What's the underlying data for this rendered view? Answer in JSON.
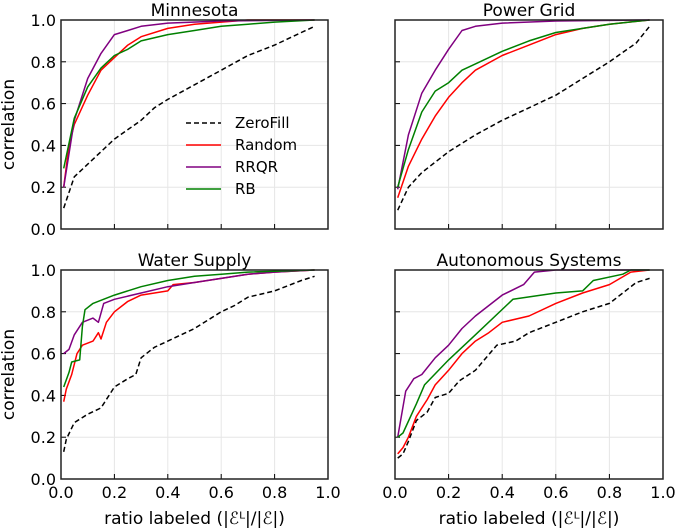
{
  "chart_data": [
    {
      "type": "line",
      "title": "Minnesota",
      "xlabel": "",
      "ylabel": "correlation",
      "xlim": [
        0,
        1
      ],
      "ylim": [
        0,
        1
      ],
      "xticks": [
        "0.0",
        "0.2",
        "0.4",
        "0.6",
        "0.8",
        "1.0"
      ],
      "yticks": [
        "0.0",
        "0.2",
        "0.4",
        "0.6",
        "0.8",
        "1.0"
      ],
      "show_xticklabels": false,
      "show_yticklabels": true,
      "grid": true,
      "legend": "center-right",
      "series": [
        {
          "name": "ZeroFill",
          "color": "#000000",
          "dash": true,
          "x": [
            0.01,
            0.05,
            0.1,
            0.2,
            0.3,
            0.35,
            0.4,
            0.5,
            0.6,
            0.7,
            0.8,
            0.9,
            0.95
          ],
          "y": [
            0.1,
            0.25,
            0.31,
            0.43,
            0.52,
            0.58,
            0.62,
            0.69,
            0.76,
            0.83,
            0.88,
            0.94,
            0.97
          ]
        },
        {
          "name": "Random",
          "color": "#ff0000",
          "dash": false,
          "x": [
            0.01,
            0.03,
            0.05,
            0.1,
            0.15,
            0.2,
            0.25,
            0.3,
            0.4,
            0.5,
            0.6,
            0.7,
            0.95
          ],
          "y": [
            0.2,
            0.4,
            0.5,
            0.64,
            0.76,
            0.82,
            0.88,
            0.92,
            0.96,
            0.98,
            0.99,
            1.0,
            1.0
          ]
        },
        {
          "name": "RRQR",
          "color": "#800080",
          "dash": false,
          "x": [
            0.01,
            0.05,
            0.1,
            0.15,
            0.2,
            0.25,
            0.3,
            0.4,
            0.6,
            0.95
          ],
          "y": [
            0.2,
            0.52,
            0.72,
            0.84,
            0.93,
            0.95,
            0.97,
            0.985,
            0.995,
            1.0
          ]
        },
        {
          "name": "RB",
          "color": "#008000",
          "dash": false,
          "x": [
            0.01,
            0.05,
            0.1,
            0.15,
            0.2,
            0.25,
            0.3,
            0.4,
            0.5,
            0.6,
            0.7,
            0.8,
            0.95
          ],
          "y": [
            0.29,
            0.53,
            0.68,
            0.77,
            0.83,
            0.86,
            0.9,
            0.93,
            0.95,
            0.97,
            0.98,
            0.99,
            1.0
          ]
        }
      ]
    },
    {
      "type": "line",
      "title": "Power Grid",
      "xlabel": "",
      "ylabel": "",
      "xlim": [
        0,
        1
      ],
      "ylim": [
        0,
        1
      ],
      "xticks": [
        "0.0",
        "0.2",
        "0.4",
        "0.6",
        "0.8",
        "1.0"
      ],
      "yticks": [
        "0.0",
        "0.2",
        "0.4",
        "0.6",
        "0.8",
        "1.0"
      ],
      "show_xticklabels": false,
      "show_yticklabels": false,
      "grid": true,
      "series": [
        {
          "name": "ZeroFill",
          "color": "#000000",
          "dash": true,
          "x": [
            0.01,
            0.05,
            0.1,
            0.2,
            0.3,
            0.4,
            0.5,
            0.6,
            0.7,
            0.8,
            0.9,
            0.95
          ],
          "y": [
            0.09,
            0.2,
            0.27,
            0.37,
            0.45,
            0.52,
            0.58,
            0.64,
            0.72,
            0.8,
            0.89,
            0.97
          ]
        },
        {
          "name": "Random",
          "color": "#ff0000",
          "dash": false,
          "x": [
            0.01,
            0.05,
            0.1,
            0.15,
            0.2,
            0.25,
            0.3,
            0.4,
            0.5,
            0.6,
            0.7,
            0.8,
            0.95
          ],
          "y": [
            0.15,
            0.3,
            0.43,
            0.54,
            0.63,
            0.7,
            0.76,
            0.83,
            0.88,
            0.93,
            0.96,
            0.98,
            1.0
          ]
        },
        {
          "name": "RRQR",
          "color": "#800080",
          "dash": false,
          "x": [
            0.01,
            0.05,
            0.1,
            0.15,
            0.2,
            0.25,
            0.3,
            0.4,
            0.6,
            0.95
          ],
          "y": [
            0.19,
            0.45,
            0.65,
            0.76,
            0.86,
            0.95,
            0.97,
            0.985,
            0.995,
            1.0
          ]
        },
        {
          "name": "RB",
          "color": "#008000",
          "dash": false,
          "x": [
            0.01,
            0.05,
            0.1,
            0.15,
            0.2,
            0.25,
            0.3,
            0.4,
            0.5,
            0.6,
            0.7,
            0.8,
            0.95
          ],
          "y": [
            0.2,
            0.38,
            0.56,
            0.66,
            0.7,
            0.76,
            0.79,
            0.85,
            0.9,
            0.94,
            0.96,
            0.98,
            1.0
          ]
        }
      ]
    },
    {
      "type": "line",
      "title": "Water Supply",
      "xlabel": "ratio labeled (|ℰᴸ|/|ℰ|)",
      "ylabel": "correlation",
      "xlim": [
        0,
        1
      ],
      "ylim": [
        0,
        1
      ],
      "xticks": [
        "0.0",
        "0.2",
        "0.4",
        "0.6",
        "0.8",
        "1.0"
      ],
      "yticks": [
        "0.0",
        "0.2",
        "0.4",
        "0.6",
        "0.8",
        "1.0"
      ],
      "show_xticklabels": true,
      "show_yticklabels": true,
      "grid": true,
      "series": [
        {
          "name": "ZeroFill",
          "color": "#000000",
          "dash": true,
          "x": [
            0.01,
            0.02,
            0.05,
            0.1,
            0.15,
            0.2,
            0.25,
            0.28,
            0.3,
            0.35,
            0.4,
            0.5,
            0.6,
            0.65,
            0.7,
            0.8,
            0.9,
            0.95
          ],
          "y": [
            0.13,
            0.19,
            0.27,
            0.31,
            0.34,
            0.44,
            0.48,
            0.5,
            0.58,
            0.63,
            0.66,
            0.72,
            0.8,
            0.83,
            0.87,
            0.9,
            0.95,
            0.97
          ]
        },
        {
          "name": "Random",
          "color": "#ff0000",
          "dash": false,
          "x": [
            0.01,
            0.02,
            0.04,
            0.06,
            0.08,
            0.12,
            0.14,
            0.15,
            0.17,
            0.2,
            0.25,
            0.3,
            0.4,
            0.42,
            0.5,
            0.6,
            0.7,
            0.8,
            0.95
          ],
          "y": [
            0.37,
            0.43,
            0.5,
            0.6,
            0.64,
            0.66,
            0.7,
            0.67,
            0.75,
            0.8,
            0.85,
            0.88,
            0.9,
            0.93,
            0.94,
            0.96,
            0.98,
            0.99,
            1.0
          ]
        },
        {
          "name": "RRQR",
          "color": "#800080",
          "dash": false,
          "x": [
            0.01,
            0.03,
            0.05,
            0.08,
            0.12,
            0.14,
            0.16,
            0.2,
            0.3,
            0.4,
            0.5,
            0.6,
            0.7,
            0.8,
            0.95
          ],
          "y": [
            0.6,
            0.62,
            0.69,
            0.75,
            0.77,
            0.75,
            0.84,
            0.86,
            0.89,
            0.92,
            0.94,
            0.96,
            0.98,
            0.99,
            1.0
          ]
        },
        {
          "name": "RB",
          "color": "#008000",
          "dash": false,
          "x": [
            0.01,
            0.03,
            0.04,
            0.07,
            0.08,
            0.09,
            0.12,
            0.2,
            0.3,
            0.4,
            0.5,
            0.6,
            0.7,
            0.95
          ],
          "y": [
            0.44,
            0.51,
            0.56,
            0.57,
            0.73,
            0.81,
            0.84,
            0.88,
            0.92,
            0.95,
            0.97,
            0.98,
            0.99,
            1.0
          ]
        }
      ]
    },
    {
      "type": "line",
      "title": "Autonomous Systems",
      "xlabel": "ratio labeled (|ℰᴸ|/|ℰ|)",
      "ylabel": "",
      "xlim": [
        0,
        1
      ],
      "ylim": [
        0,
        1
      ],
      "xticks": [
        "0.0",
        "0.2",
        "0.4",
        "0.6",
        "0.8",
        "1.0"
      ],
      "yticks": [
        "0.0",
        "0.2",
        "0.4",
        "0.6",
        "0.8",
        "1.0"
      ],
      "show_xticklabels": true,
      "show_yticklabels": false,
      "grid": true,
      "series": [
        {
          "name": "ZeroFill",
          "color": "#000000",
          "dash": true,
          "x": [
            0.01,
            0.03,
            0.05,
            0.08,
            0.12,
            0.15,
            0.2,
            0.24,
            0.3,
            0.38,
            0.45,
            0.5,
            0.6,
            0.7,
            0.8,
            0.85,
            0.9,
            0.95
          ],
          "y": [
            0.1,
            0.12,
            0.18,
            0.28,
            0.32,
            0.39,
            0.41,
            0.47,
            0.52,
            0.64,
            0.66,
            0.7,
            0.75,
            0.8,
            0.84,
            0.89,
            0.94,
            0.96
          ]
        },
        {
          "name": "Random",
          "color": "#ff0000",
          "dash": false,
          "x": [
            0.01,
            0.03,
            0.05,
            0.08,
            0.12,
            0.15,
            0.2,
            0.25,
            0.3,
            0.35,
            0.4,
            0.5,
            0.6,
            0.7,
            0.8,
            0.88,
            0.95
          ],
          "y": [
            0.12,
            0.15,
            0.2,
            0.3,
            0.38,
            0.45,
            0.52,
            0.6,
            0.66,
            0.7,
            0.75,
            0.78,
            0.84,
            0.89,
            0.93,
            0.99,
            1.0
          ]
        },
        {
          "name": "RRQR",
          "color": "#800080",
          "dash": false,
          "x": [
            0.01,
            0.04,
            0.07,
            0.1,
            0.15,
            0.2,
            0.25,
            0.3,
            0.4,
            0.48,
            0.52,
            0.6,
            0.95
          ],
          "y": [
            0.2,
            0.42,
            0.48,
            0.5,
            0.58,
            0.64,
            0.72,
            0.78,
            0.88,
            0.93,
            0.99,
            1.0,
            1.0
          ]
        },
        {
          "name": "RB",
          "color": "#008000",
          "dash": false,
          "x": [
            0.01,
            0.03,
            0.08,
            0.11,
            0.2,
            0.3,
            0.44,
            0.6,
            0.7,
            0.74,
            0.85,
            0.88,
            0.95
          ],
          "y": [
            0.2,
            0.22,
            0.36,
            0.45,
            0.57,
            0.69,
            0.86,
            0.89,
            0.9,
            0.95,
            0.98,
            1.0,
            1.0
          ]
        }
      ]
    }
  ]
}
